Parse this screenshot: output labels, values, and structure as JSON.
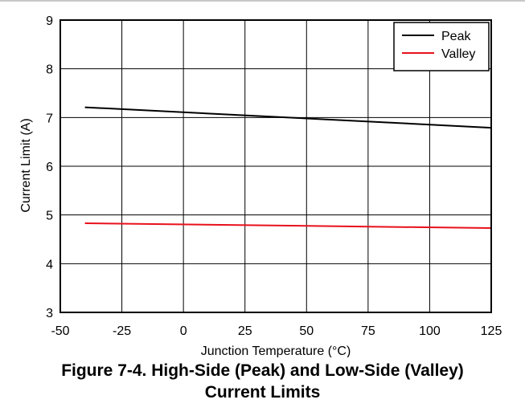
{
  "chart_data": {
    "type": "line",
    "title": "",
    "xlabel": "Junction Temperature (°C)",
    "ylabel": "Current Limit (A)",
    "xlim": [
      -50,
      125
    ],
    "ylim": [
      3,
      9
    ],
    "xticks": [
      "-50",
      "-25",
      "0",
      "25",
      "50",
      "75",
      "100",
      "125"
    ],
    "yticks": [
      "3",
      "4",
      "5",
      "6",
      "7",
      "8",
      "9"
    ],
    "grid": true,
    "legend_position": "top-right",
    "series": [
      {
        "name": "Peak",
        "color": "#000000",
        "x": [
          -40,
          125
        ],
        "y": [
          7.21,
          6.79
        ]
      },
      {
        "name": "Valley",
        "color": "#e8111b",
        "x": [
          -40,
          125
        ],
        "y": [
          4.83,
          4.73
        ]
      }
    ]
  },
  "caption": {
    "line1": "Figure 7-4. High-Side (Peak) and Low-Side (Valley)",
    "line2": "Current Limits"
  }
}
